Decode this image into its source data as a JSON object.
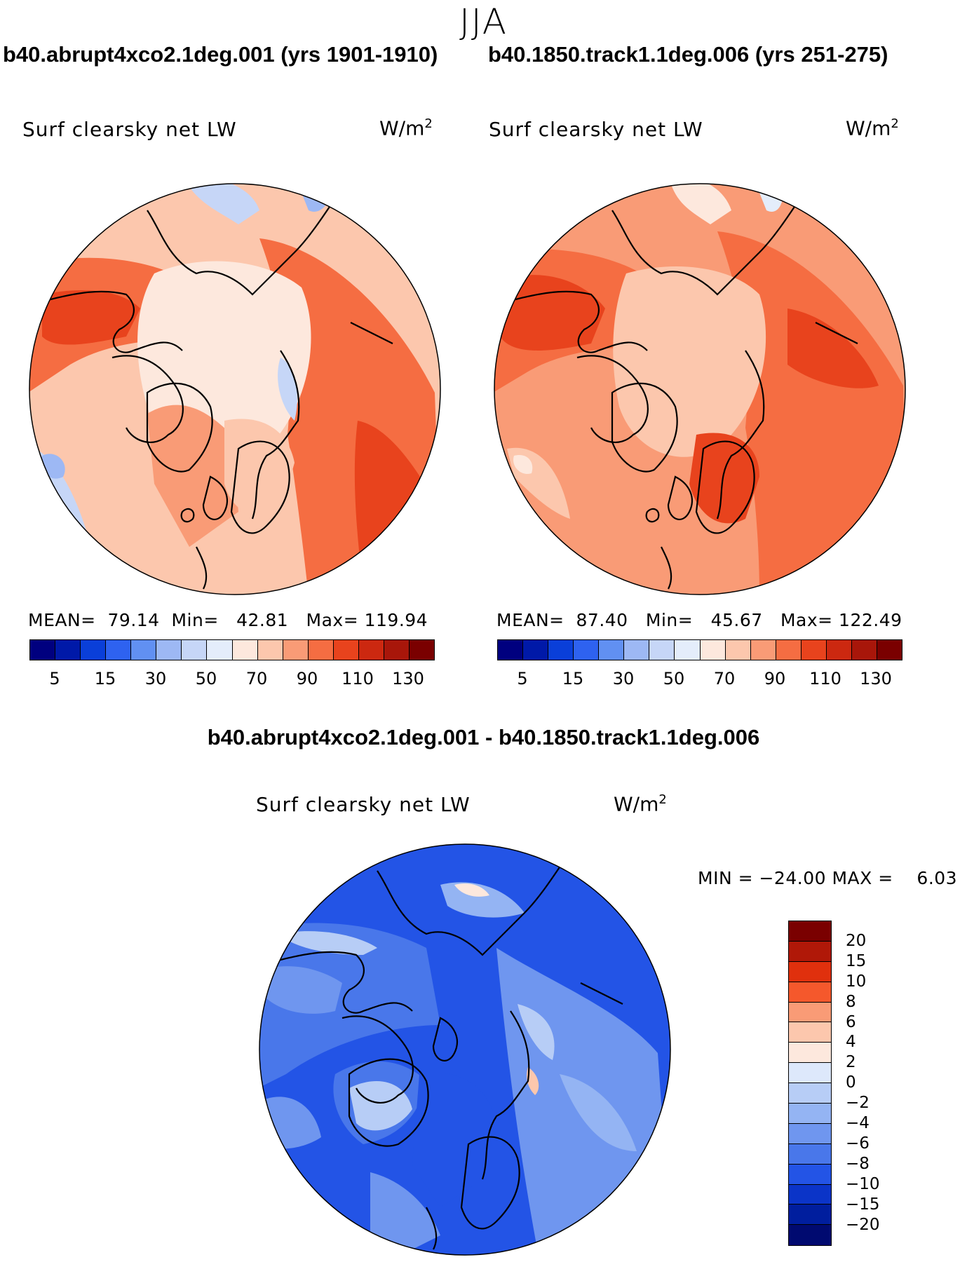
{
  "season": "JJA",
  "panels": [
    {
      "case_title": "b40.abrupt4xco2.1deg.001 (yrs 1901-1910)",
      "variable": "Surf clearsky net LW",
      "units_base": "W/m",
      "units_exp": "2",
      "stats": "MEAN=  79.14  Min=   42.81   Max= 119.94"
    },
    {
      "case_title": "b40.1850.track1.1deg.006 (yrs 251-275)",
      "variable": "Surf clearsky net LW",
      "units_base": "W/m",
      "units_exp": "2",
      "stats": "MEAN=  87.40   Min=   45.67   Max= 122.49"
    }
  ],
  "colorbar": {
    "colors": [
      "#00007f",
      "#0019a8",
      "#0a3fd9",
      "#2e62f0",
      "#6190f2",
      "#9db8f4",
      "#c6d6f7",
      "#e4edfb",
      "#fde8dd",
      "#fcc7ad",
      "#f99b76",
      "#f56d42",
      "#e8431d",
      "#cc2810",
      "#a8160a",
      "#7a0000"
    ],
    "tick_labels": [
      "5",
      "15",
      "30",
      "50",
      "70",
      "90",
      "110",
      "130"
    ]
  },
  "diff": {
    "title": "b40.abrupt4xco2.1deg.001 - b40.1850.track1.1deg.006",
    "variable": "Surf clearsky net LW",
    "units_base": "W/m",
    "units_exp": "2",
    "minmax": "MIN = −24.00 MAX =    6.03",
    "colorbar": {
      "colors": [
        "#7a0000",
        "#b01808",
        "#e0300d",
        "#f5582c",
        "#f99b76",
        "#fcc7ad",
        "#fde8dd",
        "#dde8fb",
        "#b7cdf6",
        "#94b4f3",
        "#6f96ef",
        "#4977ea",
        "#2354e6",
        "#0b34c8",
        "#001e9e",
        "#000a70"
      ],
      "tick_labels": [
        "20",
        "15",
        "10",
        "8",
        "6",
        "4",
        "2",
        "0",
        "−2",
        "−4",
        "−6",
        "−8",
        "−10",
        "−15",
        "−20"
      ]
    }
  }
}
